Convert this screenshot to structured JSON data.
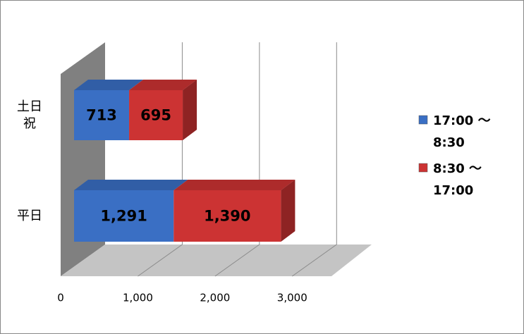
{
  "chart_data": {
    "type": "bar3d-stacked-horizontal",
    "categories": [
      "土日祝",
      "平日"
    ],
    "series": [
      {
        "name": "17:00 ～8:30",
        "color": "#3a6fc4",
        "values": [
          713,
          1291
        ],
        "value_labels": [
          "713",
          "1,291"
        ]
      },
      {
        "name": "8:30 ～17:00",
        "color": "#cc3333",
        "values": [
          695,
          1390
        ],
        "value_labels": [
          "695",
          "1,390"
        ]
      }
    ],
    "xlim": [
      0,
      3500
    ],
    "xticks": [
      0,
      {
        "value": 1000,
        "label": "1,000"
      },
      {
        "value": 2000,
        "label": "2,000"
      },
      {
        "value": 3000,
        "label": "3,000"
      }
    ],
    "grid": true,
    "legend": "right"
  }
}
